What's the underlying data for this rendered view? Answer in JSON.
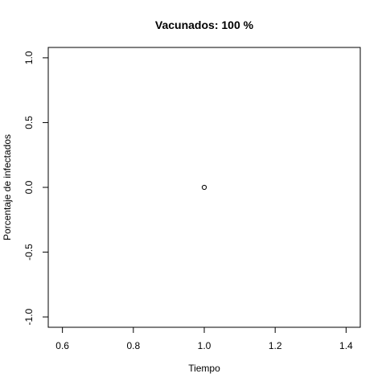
{
  "chart_data": {
    "type": "scatter",
    "title": "Vacunados:  100 %",
    "xlabel": "Tiempo",
    "ylabel": "Porcentaje de infectados",
    "xlim": [
      0.56,
      1.44
    ],
    "ylim": [
      -1.08,
      1.08
    ],
    "x_ticks": [
      0.6,
      0.8,
      1.0,
      1.2,
      1.4
    ],
    "x_tick_labels": [
      "0.6",
      "0.8",
      "1.0",
      "1.2",
      "1.4"
    ],
    "y_ticks": [
      -1.0,
      -0.5,
      0.0,
      0.5,
      1.0
    ],
    "y_tick_labels": [
      "-1.0",
      "-0.5",
      "0.0",
      "0.5",
      "1.0"
    ],
    "grid": false,
    "legend": "none",
    "series": [
      {
        "x": [
          1.0
        ],
        "y": [
          0.0
        ],
        "marker": "open-circle",
        "color": "#000000"
      }
    ]
  }
}
